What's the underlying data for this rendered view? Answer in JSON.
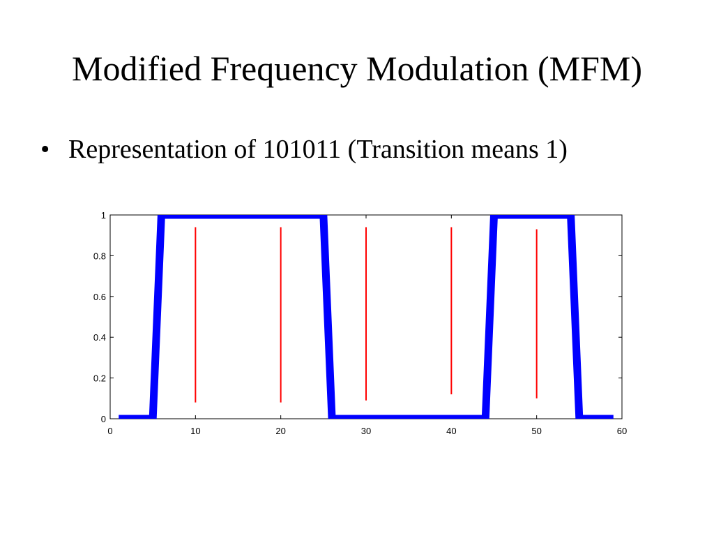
{
  "slide": {
    "title": "Modified Frequency Modulation (MFM)",
    "bullets": [
      {
        "text": "Representation of 101011 (Transition means 1)"
      }
    ]
  },
  "chart_data": {
    "type": "line",
    "title": "",
    "xlabel": "",
    "ylabel": "",
    "xlim": [
      0,
      60
    ],
    "ylim": [
      0,
      1
    ],
    "xticks": [
      0,
      10,
      20,
      30,
      40,
      50,
      60
    ],
    "yticks": [
      0,
      0.2,
      0.4,
      0.6,
      0.8,
      1
    ],
    "ytick_labels": [
      "0",
      "0.2",
      "0.4",
      "0.6",
      "0.8",
      "1"
    ],
    "grid": false,
    "series": [
      {
        "color": "#0000ff",
        "x": [
          1,
          5,
          6,
          25,
          26,
          44,
          45,
          54,
          55,
          59
        ],
        "y": [
          0,
          0,
          1,
          1,
          0,
          0,
          1,
          1,
          0,
          0
        ]
      }
    ],
    "markers": {
      "color": "#ff0000",
      "lines": [
        {
          "x": 10,
          "y0": 0.08,
          "y1": 0.94
        },
        {
          "x": 20,
          "y0": 0.08,
          "y1": 0.94
        },
        {
          "x": 30,
          "y0": 0.09,
          "y1": 0.94
        },
        {
          "x": 40,
          "y0": 0.12,
          "y1": 0.94
        },
        {
          "x": 50,
          "y0": 0.1,
          "y1": 0.93
        }
      ]
    }
  }
}
